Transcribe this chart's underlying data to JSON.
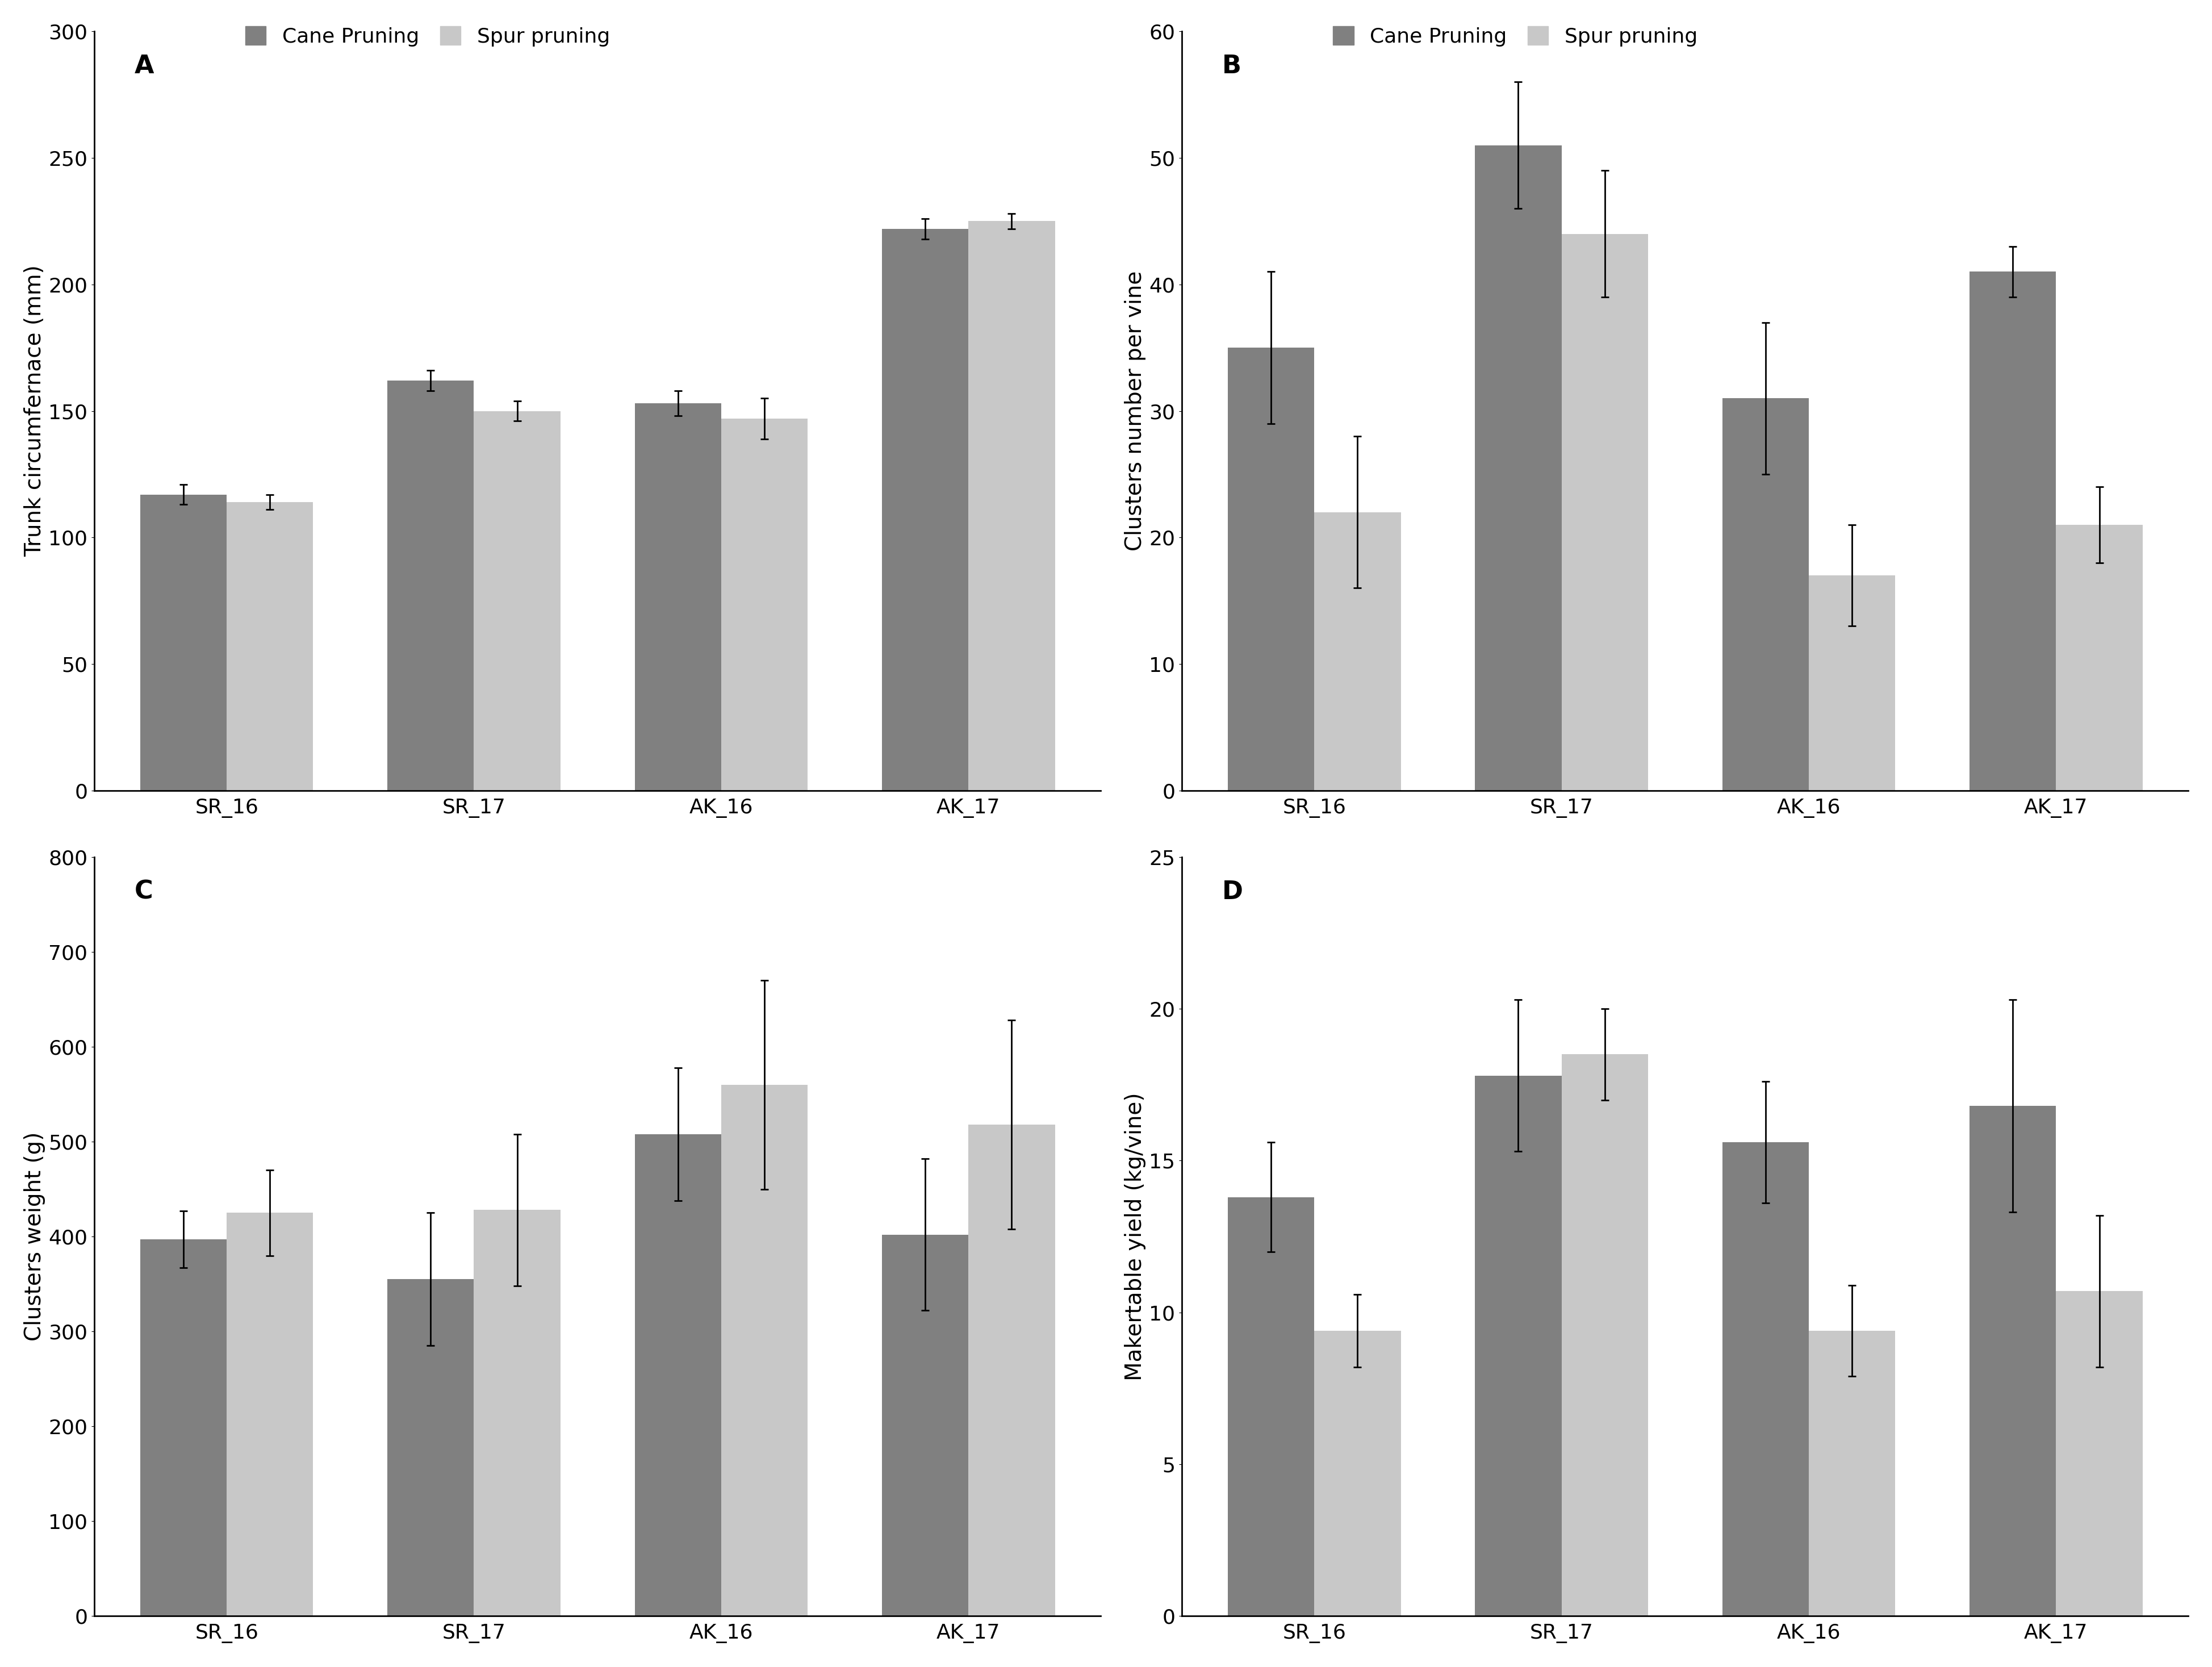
{
  "categories": [
    "SR_16",
    "SR_17",
    "AK_16",
    "AK_17"
  ],
  "cane_color": "#808080",
  "spur_color": "#c8c8c8",
  "legend_cane": "Cane Pruning",
  "legend_spur": "Spur pruning",
  "panels": [
    {
      "label": "A",
      "ylabel": "Trunk circumfernace (mm)",
      "ylim": [
        0,
        300
      ],
      "yticks": [
        0,
        50,
        100,
        150,
        200,
        250,
        300
      ],
      "cane_values": [
        117,
        162,
        153,
        222
      ],
      "spur_values": [
        114,
        150,
        147,
        225
      ],
      "cane_err": [
        4,
        4,
        5,
        4
      ],
      "spur_err": [
        3,
        4,
        8,
        3
      ]
    },
    {
      "label": "B",
      "ylabel": "Clusters number per vine",
      "ylim": [
        0,
        60
      ],
      "yticks": [
        0,
        10,
        20,
        30,
        40,
        50,
        60
      ],
      "cane_values": [
        35,
        51,
        31,
        41
      ],
      "spur_values": [
        22,
        44,
        17,
        21
      ],
      "cane_err": [
        6,
        5,
        6,
        2
      ],
      "spur_err": [
        6,
        5,
        4,
        3
      ]
    },
    {
      "label": "C",
      "ylabel": "Clusters weight (g)",
      "ylim": [
        0,
        800
      ],
      "yticks": [
        0,
        100,
        200,
        300,
        400,
        500,
        600,
        700,
        800
      ],
      "cane_values": [
        397,
        355,
        508,
        402
      ],
      "spur_values": [
        425,
        428,
        560,
        518
      ],
      "cane_err": [
        30,
        70,
        70,
        80
      ],
      "spur_err": [
        45,
        80,
        110,
        110
      ]
    },
    {
      "label": "D",
      "ylabel": "Makertable yield (kg/vine)",
      "ylim": [
        0,
        25
      ],
      "yticks": [
        0,
        5,
        10,
        15,
        20,
        25
      ],
      "cane_values": [
        13.8,
        17.8,
        15.6,
        16.8
      ],
      "spur_values": [
        9.4,
        18.5,
        9.4,
        10.7
      ],
      "cane_err": [
        1.8,
        2.5,
        2.0,
        3.5
      ],
      "spur_err": [
        1.2,
        1.5,
        1.5,
        2.5
      ]
    }
  ],
  "bar_width": 0.35,
  "background_color": "#ffffff",
  "fontsize_label": 28,
  "fontsize_tick": 26,
  "fontsize_legend": 26,
  "fontsize_panel": 32
}
